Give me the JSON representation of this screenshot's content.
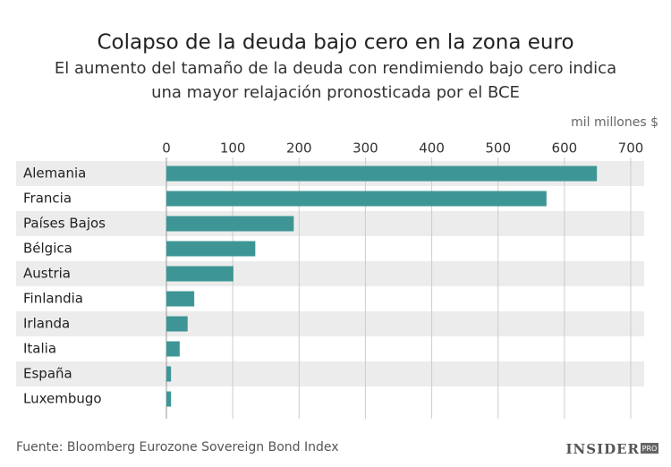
{
  "chart_data": {
    "type": "hbar",
    "title": "Colapso de la deuda bajo cero en la zona euro",
    "subtitle": [
      "El aumento del tamaño de la deuda con rendimiendo bajo cero indica",
      "una mayor relajación pronosticada por el BCE"
    ],
    "x_label": "mil millones $",
    "categories": [
      "Alemania",
      "Francia",
      "Países Bajos",
      "Bélgica",
      "Austria",
      "Finlandia",
      "Irlanda",
      "Italia",
      "España",
      "Luxembugo"
    ],
    "values": [
      649,
      573,
      192,
      134,
      101,
      42,
      32,
      20,
      7,
      7
    ],
    "color": "#3d9695",
    "xlim": [
      0,
      700
    ],
    "xticks": [
      0,
      100,
      200,
      300,
      400,
      500,
      600,
      700
    ],
    "grid": true,
    "source": "Fuente: Bloomberg Eurozone Sovereign Bond Index",
    "brand": {
      "name": "INSIDER",
      "tag": "PRO"
    }
  }
}
